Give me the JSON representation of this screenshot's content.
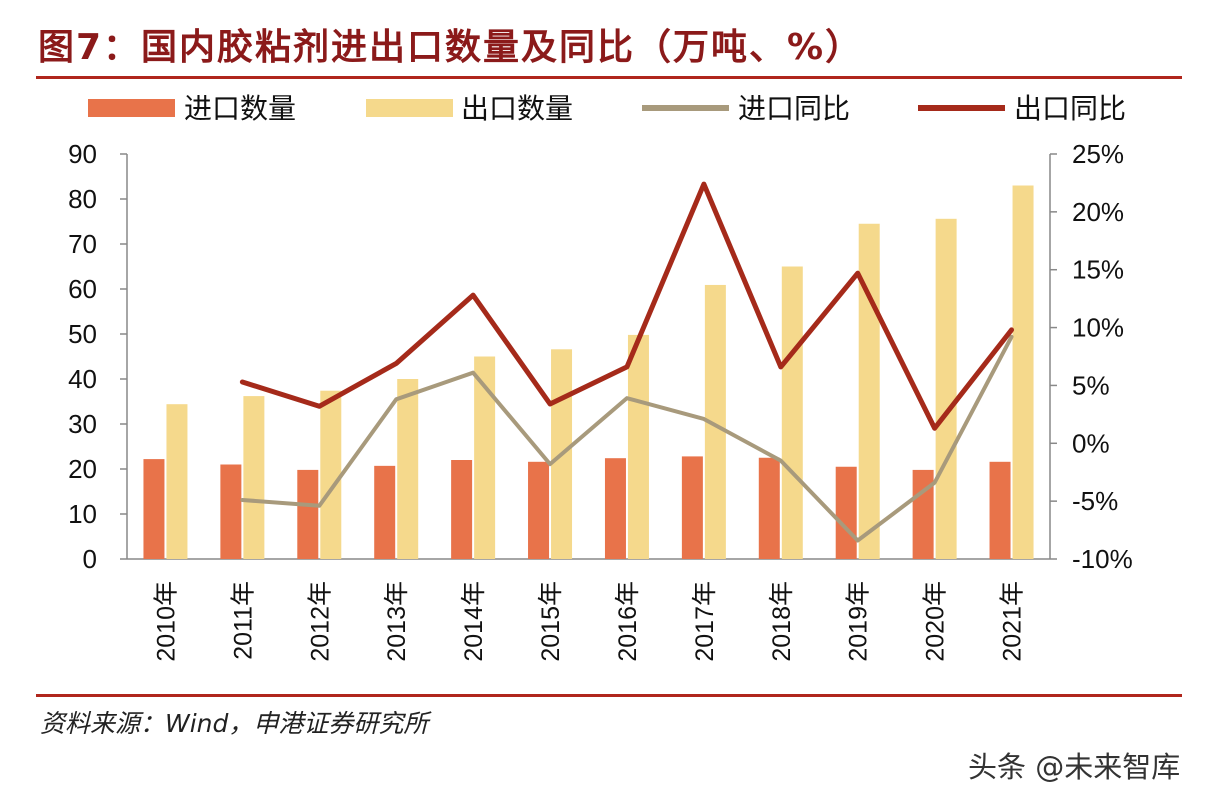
{
  "title": "图7：国内胶粘剂进出口数量及同比（万吨、%）",
  "source": "资料来源：Wind，申港证券研究所",
  "watermark": "头条 @未来智库",
  "colors": {
    "title": "#8b1a1a",
    "rule": "#b0261c",
    "import_bar": "#e8734a",
    "export_bar": "#f5d98c",
    "import_line": "#a89a7c",
    "export_line": "#a52a1a"
  },
  "chart_data": {
    "type": "bar",
    "title": "图7：国内胶粘剂进出口数量及同比（万吨、%）",
    "categories": [
      "2010年",
      "2011年",
      "2012年",
      "2013年",
      "2014年",
      "2015年",
      "2016年",
      "2017年",
      "2018年",
      "2019年",
      "2020年",
      "2021年"
    ],
    "left_axis": {
      "min": 0,
      "max": 90,
      "step": 10,
      "ticks": [
        "0",
        "10",
        "20",
        "30",
        "40",
        "50",
        "60",
        "70",
        "80",
        "90"
      ]
    },
    "right_axis": {
      "min": -10,
      "max": 25,
      "step": 5,
      "ticks": [
        "-10%",
        "-5%",
        "0%",
        "5%",
        "10%",
        "15%",
        "20%",
        "25%"
      ]
    },
    "legend": [
      "进口数量",
      "出口数量",
      "进口同比",
      "出口同比"
    ],
    "legend_position": "top",
    "series": [
      {
        "name": "进口数量",
        "type": "bar",
        "axis": "left",
        "values": [
          22.2,
          21.0,
          19.8,
          20.7,
          22.0,
          21.6,
          22.4,
          22.8,
          22.5,
          20.5,
          19.8,
          21.6
        ]
      },
      {
        "name": "出口数量",
        "type": "bar",
        "axis": "left",
        "values": [
          34.4,
          36.2,
          37.4,
          40.0,
          45.0,
          46.6,
          49.8,
          60.9,
          65.0,
          74.5,
          75.6,
          83.0
        ]
      },
      {
        "name": "进口同比",
        "type": "line",
        "axis": "right",
        "unit": "%",
        "values": [
          null,
          -4.9,
          -5.4,
          3.8,
          6.1,
          -1.8,
          3.9,
          2.1,
          -1.5,
          -8.4,
          -3.4,
          9.2
        ]
      },
      {
        "name": "出口同比",
        "type": "line",
        "axis": "right",
        "unit": "%",
        "values": [
          null,
          5.3,
          3.2,
          6.9,
          12.8,
          3.4,
          6.6,
          22.4,
          6.6,
          14.7,
          1.3,
          9.8
        ]
      }
    ]
  }
}
